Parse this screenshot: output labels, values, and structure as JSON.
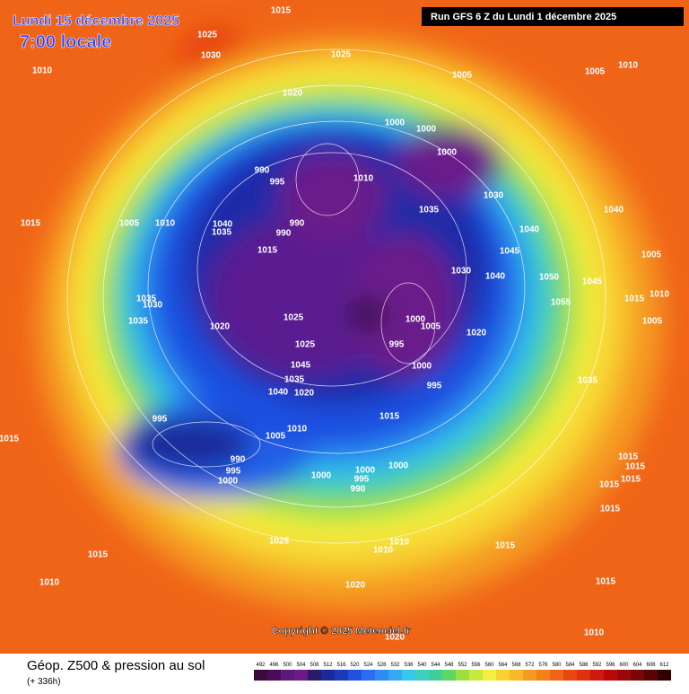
{
  "header": {
    "title": "Lundi 15 décembre 2025",
    "time": "7:00 locale",
    "run": "Run GFS 6 Z du Lundi 1 décembre 2025"
  },
  "map": {
    "pressure_labels": [
      "1015",
      "1025",
      "1030",
      "1010",
      "1025",
      "1020",
      "1005",
      "1010",
      "1005",
      "1000",
      "1000",
      "1000",
      "990",
      "995",
      "1010",
      "1030",
      "1035",
      "1040",
      "1015",
      "1005",
      "1010",
      "1040",
      "1035",
      "990",
      "990",
      "1040",
      "1045",
      "1015",
      "1005",
      "1030",
      "1040",
      "1050",
      "1045",
      "1035",
      "1030",
      "1025",
      "1015",
      "1010",
      "1055",
      "1000",
      "1005",
      "1005",
      "1035",
      "1020",
      "995",
      "1025",
      "1020",
      "1000",
      "1045",
      "1035",
      "1040",
      "1020",
      "995",
      "1035",
      "1015",
      "995",
      "1010",
      "1005",
      "1015",
      "990",
      "995",
      "1000",
      "1000",
      "1000",
      "1000",
      "995",
      "990",
      "1015",
      "1015",
      "1015",
      "1015",
      "1015",
      "1025",
      "1015",
      "1010",
      "1010",
      "1015",
      "1020",
      "1010",
      "1015",
      "1020",
      "1010"
    ],
    "copyright": "Copyright © 2025 Meteociel.fr"
  },
  "footer": {
    "title": "Géop. Z500 & pression au sol",
    "lead": "(+ 336h)",
    "scale": [
      492,
      496,
      500,
      504,
      508,
      512,
      516,
      520,
      524,
      528,
      532,
      536,
      540,
      544,
      548,
      552,
      556,
      560,
      564,
      568,
      572,
      576,
      580,
      584,
      588,
      592,
      596,
      600,
      604,
      608,
      612
    ]
  }
}
